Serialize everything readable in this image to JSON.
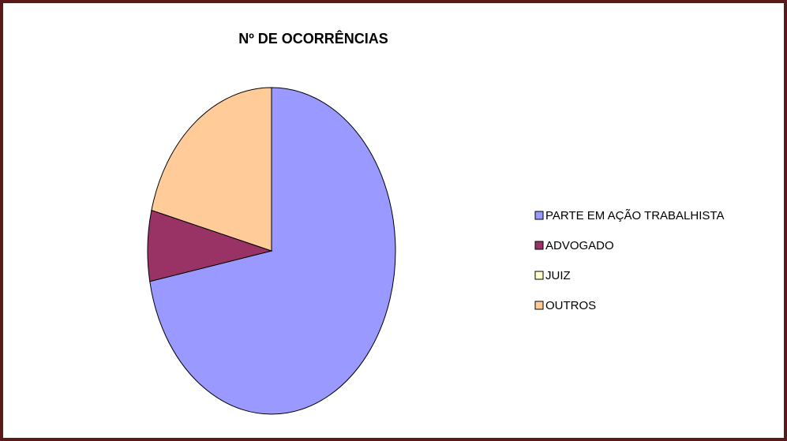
{
  "chart_data": {
    "type": "pie",
    "title": "Nº DE OCORRÊNCIAS",
    "categories": [
      "PARTE EM AÇÃO TRABALHISTA",
      "ADVOGADO",
      "JUIZ",
      "OUTROS"
    ],
    "values": [
      72,
      7,
      0,
      21
    ],
    "colors": [
      "#9999ff",
      "#993366",
      "#ffffcc",
      "#ffcc99"
    ],
    "legend": "right"
  }
}
